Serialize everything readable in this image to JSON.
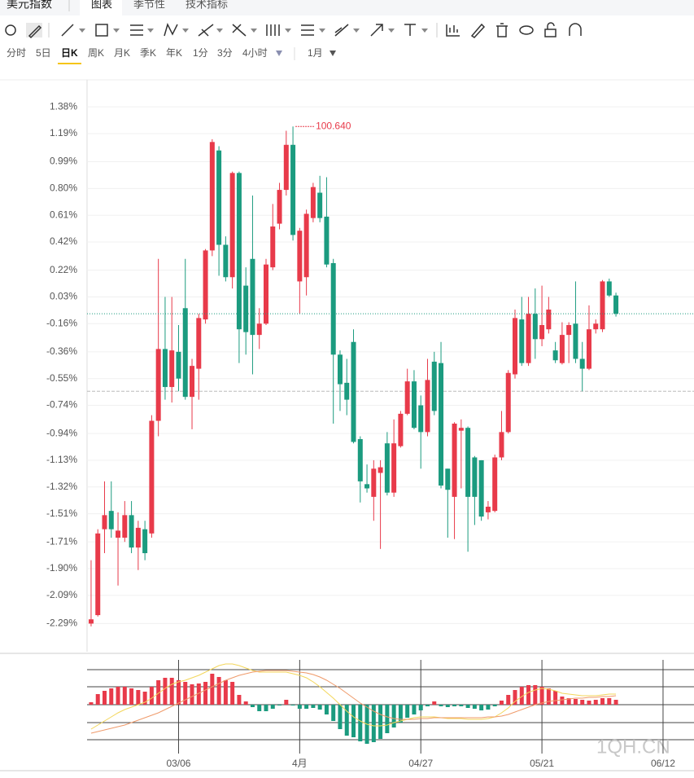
{
  "ui": {
    "tabs": [
      "美元指数",
      "图表",
      "季节性",
      "技术指标"
    ],
    "periods": [
      "分时",
      "5日",
      "日K",
      "周K",
      "月K",
      "季K",
      "年K",
      "1分",
      "3分",
      "4小时",
      "1月"
    ]
  },
  "chart_data": {
    "type": "candlestick",
    "up_color": "#e83a4a",
    "down_color": "#1b9b7f",
    "open": [
      -2.29,
      -2.23,
      -1.62,
      -1.49,
      -1.68,
      -1.68,
      -1.52,
      -1.75,
      -1.62,
      -1.65,
      -0.85,
      -0.34,
      -0.61,
      -0.36,
      -0.05,
      -0.68,
      -0.48,
      -0.13,
      0.36,
      1.07,
      0.4,
      0.17,
      0.91,
      0.11,
      0.3,
      -0.24,
      -0.16,
      0.24,
      0.55,
      0.79,
      1.11,
      0.14,
      0.17,
      0.59,
      0.77,
      0.6,
      0.27,
      -0.38,
      -0.58,
      -0.29,
      -0.98,
      -1.3,
      -1.39,
      -1.22,
      -1.01,
      -1.36,
      -1.03,
      -0.8,
      -0.57,
      -0.74,
      -0.93,
      -0.43,
      -0.44,
      -1.19,
      -1.39,
      -0.92,
      -0.9,
      -1.11,
      -1.13,
      -1.5,
      -1.49,
      -1.11,
      -0.93,
      -0.52,
      -0.13,
      -0.44,
      -0.09,
      -0.27,
      -0.2,
      -0.35,
      -0.44,
      -0.24,
      -0.16,
      -0.41,
      -0.48,
      -0.2,
      -0.2,
      0.14,
      0.04
    ],
    "high": [
      -1.84,
      -1.62,
      -1.28,
      -1.28,
      -1.5,
      -1.42,
      -1.42,
      -1.56,
      -1.56,
      -0.81,
      0.3,
      0.03,
      0.03,
      -0.17,
      0.3,
      -0.41,
      -0.09,
      0.37,
      1.15,
      1.1,
      0.46,
      0.92,
      0.92,
      0.24,
      0.75,
      -0.05,
      0.3,
      0.69,
      0.84,
      1.21,
      1.24,
      0.52,
      0.65,
      0.84,
      0.89,
      0.88,
      0.3,
      -0.35,
      -0.41,
      -0.2,
      -0.96,
      -1.16,
      -1.13,
      -1.13,
      -0.93,
      -0.84,
      -0.78,
      -0.48,
      -0.49,
      -0.67,
      -0.41,
      -0.36,
      -0.29,
      -1.19,
      -0.86,
      -0.84,
      -0.89,
      -1.1,
      -1.13,
      -1.42,
      -1.09,
      -0.78,
      -0.49,
      -0.06,
      0.03,
      0.03,
      0.09,
      0.11,
      0.03,
      -0.29,
      -0.15,
      -0.15,
      0.14,
      -0.29,
      -0.03,
      -0.13,
      0.15,
      0.16,
      0.06
    ],
    "low": [
      -2.31,
      -2.24,
      -1.79,
      -1.68,
      -2.02,
      -1.71,
      -1.79,
      -1.91,
      -1.84,
      -1.68,
      -0.96,
      -0.7,
      -0.72,
      -0.64,
      -0.7,
      -0.91,
      -0.7,
      -0.16,
      0.32,
      0.18,
      0.14,
      0.09,
      -0.44,
      -0.38,
      -0.52,
      -0.34,
      -0.17,
      0.22,
      0.51,
      0.75,
      0.43,
      -0.09,
      0.04,
      0.56,
      0.56,
      0.24,
      -0.87,
      -0.78,
      -0.81,
      -1.01,
      -1.43,
      -1.36,
      -1.56,
      -1.76,
      -1.38,
      -1.39,
      -1.04,
      -0.81,
      -0.91,
      -1.19,
      -0.96,
      -0.81,
      -1.33,
      -1.68,
      -1.69,
      -1.33,
      -1.78,
      -1.59,
      -1.56,
      -1.55,
      -1.5,
      -1.13,
      -0.94,
      -0.55,
      -0.46,
      -0.46,
      -0.41,
      -0.32,
      -0.23,
      -0.44,
      -0.45,
      -0.44,
      -0.44,
      -0.64,
      -0.49,
      -0.23,
      -0.22,
      0.03,
      -0.11
    ],
    "close": [
      -2.26,
      -1.65,
      -1.52,
      -1.62,
      -1.63,
      -1.52,
      -1.75,
      -1.61,
      -1.79,
      -0.85,
      -0.34,
      -0.61,
      -0.35,
      -0.55,
      -0.68,
      -0.46,
      -0.12,
      0.36,
      1.13,
      0.4,
      0.17,
      0.91,
      -0.2,
      -0.22,
      -0.24,
      -0.16,
      0.26,
      0.53,
      0.79,
      1.11,
      0.47,
      0.5,
      0.62,
      0.81,
      0.59,
      0.26,
      -0.38,
      -0.59,
      -0.7,
      -1.0,
      -1.28,
      -1.33,
      -1.19,
      -1.18,
      -1.36,
      -1.01,
      -0.8,
      -0.57,
      -0.9,
      -0.93,
      -0.56,
      -0.78,
      -1.31,
      -1.34,
      -0.87,
      -0.9,
      -1.39,
      -1.39,
      -1.53,
      -1.46,
      -1.11,
      -0.93,
      -0.51,
      -0.12,
      -0.44,
      -0.09,
      -0.27,
      -0.17,
      -0.06,
      -0.42,
      -0.24,
      -0.17,
      -0.41,
      -0.48,
      -0.2,
      -0.16,
      0.14,
      0.04,
      -0.09
    ],
    "annotation": "100.640",
    "reference_line": -0.64,
    "ylim": [
      -2.49,
      1.56
    ],
    "yticks": [
      {
        "value": 1.38,
        "label": "1.38%"
      },
      {
        "value": 1.19,
        "label": "1.19%"
      },
      {
        "value": 0.99,
        "label": "0.99%"
      },
      {
        "value": 0.8,
        "label": "0.80%"
      },
      {
        "value": 0.61,
        "label": "0.61%"
      },
      {
        "value": 0.42,
        "label": "0.42%"
      },
      {
        "value": 0.22,
        "label": "0.22%"
      },
      {
        "value": 0.03,
        "label": "0.03%"
      },
      {
        "value": -0.16,
        "label": "-0.16%"
      },
      {
        "value": -0.36,
        "label": "-0.36%"
      },
      {
        "value": -0.55,
        "label": "-0.55%"
      },
      {
        "value": -0.74,
        "label": "-0.74%"
      },
      {
        "value": -0.94,
        "label": "-0.94%"
      },
      {
        "value": -1.13,
        "label": "-1.13%"
      },
      {
        "value": -1.32,
        "label": "-1.32%"
      },
      {
        "value": -1.51,
        "label": "-1.51%"
      },
      {
        "value": -1.71,
        "label": "-1.71%"
      },
      {
        "value": -1.9,
        "label": "-1.90%"
      },
      {
        "value": -2.09,
        "label": "-2.09%"
      },
      {
        "value": -2.29,
        "label": "-2.29%"
      }
    ],
    "xlim": [
      -0.6,
      89.6
    ],
    "xticks": [
      {
        "value": 13,
        "label": "03/06"
      },
      {
        "value": 31,
        "label": "4月"
      },
      {
        "value": 49,
        "label": "04/27"
      },
      {
        "value": 67,
        "label": "05/21"
      },
      {
        "value": 85,
        "label": "06/12"
      }
    ],
    "grid": true,
    "macd": {
      "ylim": [
        -58,
        55
      ],
      "histogram": [
        3,
        13,
        17,
        20,
        22,
        22,
        20,
        18,
        16,
        22,
        30,
        33,
        33,
        30,
        28,
        25,
        26,
        28,
        38,
        34,
        30,
        28,
        12,
        4,
        -3,
        -8,
        -8,
        -5,
        -1,
        6,
        -1,
        -5,
        -5,
        -4,
        -6,
        -12,
        -20,
        -30,
        -38,
        -40,
        -45,
        -48,
        -46,
        -42,
        -35,
        -28,
        -22,
        -16,
        -12,
        -7,
        -2,
        4,
        -2,
        -3,
        -2,
        -2,
        -4,
        -5,
        -7,
        -6,
        -2,
        5,
        12,
        18,
        22,
        24,
        24,
        22,
        20,
        17,
        10,
        8,
        7,
        6,
        5,
        6,
        8,
        8,
        6
      ],
      "series": [
        {
          "color": "#f3d65a",
          "values": [
            -30,
            -25,
            -20,
            -15,
            -10,
            -6,
            -3,
            0,
            3,
            8,
            14,
            20,
            25,
            28,
            30,
            33,
            36,
            40,
            44,
            48,
            50,
            50,
            48,
            45,
            42,
            40,
            40,
            40,
            40,
            40,
            38,
            36,
            33,
            28,
            22,
            15,
            8,
            0,
            -8,
            -15,
            -20,
            -24,
            -26,
            -26,
            -25,
            -22,
            -20,
            -18,
            -16,
            -15,
            -15,
            -15,
            -16,
            -17,
            -17,
            -17,
            -18,
            -18,
            -18,
            -17,
            -15,
            -10,
            -4,
            4,
            10,
            15,
            18,
            20,
            19,
            17,
            14,
            13,
            12,
            11,
            11,
            11,
            12,
            13,
            13
          ]
        },
        {
          "color": "#ef9a6a",
          "values": [
            -35,
            -33,
            -31,
            -29,
            -27,
            -25,
            -22,
            -19,
            -16,
            -13,
            -10,
            -6,
            -2,
            2,
            6,
            10,
            14,
            18,
            22,
            26,
            30,
            33,
            36,
            38,
            40,
            41,
            42,
            42,
            42,
            42,
            41,
            40,
            39,
            37,
            34,
            30,
            25,
            20,
            14,
            8,
            2,
            -3,
            -8,
            -12,
            -15,
            -17,
            -18,
            -18,
            -18,
            -17,
            -17,
            -16,
            -16,
            -16,
            -16,
            -16,
            -16,
            -16,
            -16,
            -15,
            -15,
            -14,
            -12,
            -9,
            -6,
            -3,
            0,
            2,
            4,
            5,
            6,
            7,
            8,
            8,
            9,
            9,
            10,
            10,
            11
          ]
        }
      ]
    },
    "watermark": "1QH.CN"
  }
}
